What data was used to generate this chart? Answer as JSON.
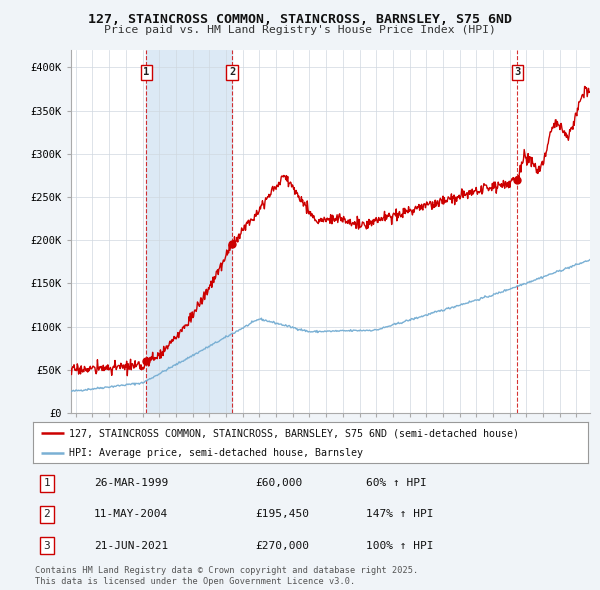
{
  "title_line1": "127, STAINCROSS COMMON, STAINCROSS, BARNSLEY, S75 6ND",
  "title_line2": "Price paid vs. HM Land Registry's House Price Index (HPI)",
  "property_label": "127, STAINCROSS COMMON, STAINCROSS, BARNSLEY, S75 6ND (semi-detached house)",
  "hpi_label": "HPI: Average price, semi-detached house, Barnsley",
  "sales": [
    {
      "num": 1,
      "date": "26-MAR-1999",
      "price": 60000,
      "pct": "60% ↑ HPI",
      "year": 1999.23
    },
    {
      "num": 2,
      "date": "11-MAY-2004",
      "price": 195450,
      "pct": "147% ↑ HPI",
      "year": 2004.36
    },
    {
      "num": 3,
      "date": "21-JUN-2021",
      "price": 270000,
      "pct": "100% ↑ HPI",
      "year": 2021.46
    }
  ],
  "footnote1": "Contains HM Land Registry data © Crown copyright and database right 2025.",
  "footnote2": "This data is licensed under the Open Government Licence v3.0.",
  "property_color": "#cc0000",
  "hpi_color": "#7ab0d4",
  "shade_color": "#dce9f5",
  "dashed_color": "#cc0000",
  "background_color": "#f0f4f8",
  "plot_bg_color": "#ffffff",
  "grid_color": "#d0d8e0",
  "ylim": [
    0,
    420000
  ],
  "xlim_start": 1994.7,
  "xlim_end": 2025.8
}
